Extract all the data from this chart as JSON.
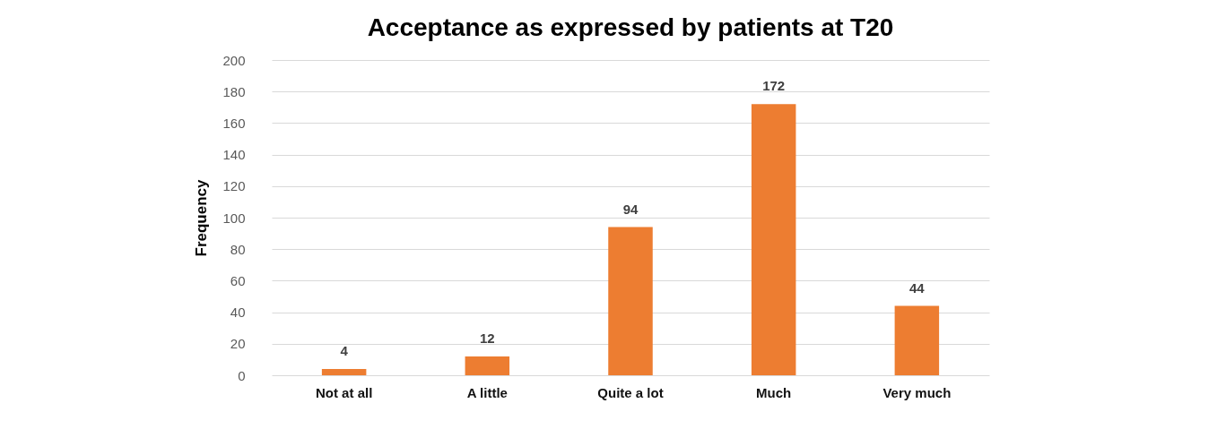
{
  "chart_data": {
    "type": "bar",
    "title": "Acceptance as expressed by patients at T20",
    "ylabel": "Frequency",
    "categories": [
      "Not at all",
      "A little",
      "Quite a lot",
      "Much",
      "Very much"
    ],
    "values": [
      4,
      12,
      94,
      172,
      44
    ],
    "color": "#ed7d31",
    "ylim": [
      0,
      200
    ],
    "yticks": [
      0,
      20,
      40,
      60,
      80,
      100,
      120,
      140,
      160,
      180,
      200
    ],
    "grid": "y",
    "data_labels": true
  }
}
